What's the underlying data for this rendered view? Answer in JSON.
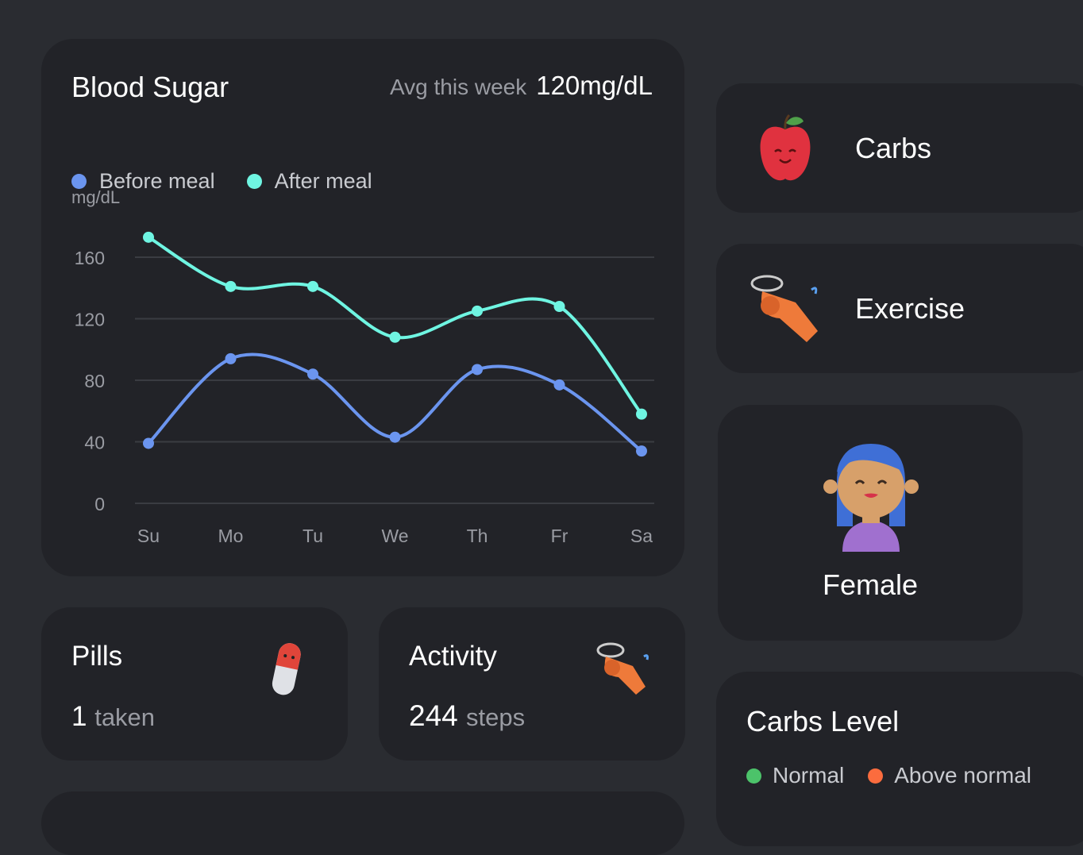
{
  "blood_sugar": {
    "title": "Blood Sugar",
    "avg_label": "Avg this week",
    "avg_value": "120mg/dL"
  },
  "colors": {
    "before_meal": "#6b95ef",
    "after_meal": "#6ff5e2",
    "normal": "#4cc36a",
    "above_normal": "#fb6c3e",
    "card": "#222328",
    "background": "#2a2c31"
  },
  "chart_data": {
    "type": "line",
    "title": "",
    "ylabel": "mg/dL",
    "xlabel": "",
    "categories": [
      "Su",
      "Mo",
      "Tu",
      "We",
      "Th",
      "Fr",
      "Sa"
    ],
    "yticks": [
      0,
      40,
      80,
      120,
      160
    ],
    "ylim": [
      0,
      180
    ],
    "grid": true,
    "smooth": true,
    "legend_placement": "top-left",
    "series": [
      {
        "name": "Before meal",
        "values": [
          39,
          94,
          84,
          43,
          87,
          77,
          34
        ]
      },
      {
        "name": "After meal",
        "values": [
          173,
          141,
          141,
          108,
          125,
          128,
          58
        ]
      }
    ]
  },
  "pills": {
    "title": "Pills",
    "count": "1",
    "unit": "taken",
    "icon": "pill-icon"
  },
  "activity": {
    "title": "Activity",
    "count": "244",
    "unit": "steps",
    "icon": "whistle-icon"
  },
  "categories": [
    {
      "label": "Carbs",
      "icon": "apple-icon"
    },
    {
      "label": "Exercise",
      "icon": "whistle-icon"
    }
  ],
  "profile": {
    "label": "Female",
    "icon": "female-avatar-icon"
  },
  "carbs_level": {
    "title": "Carbs Level",
    "legend": [
      "Normal",
      "Above normal"
    ]
  }
}
